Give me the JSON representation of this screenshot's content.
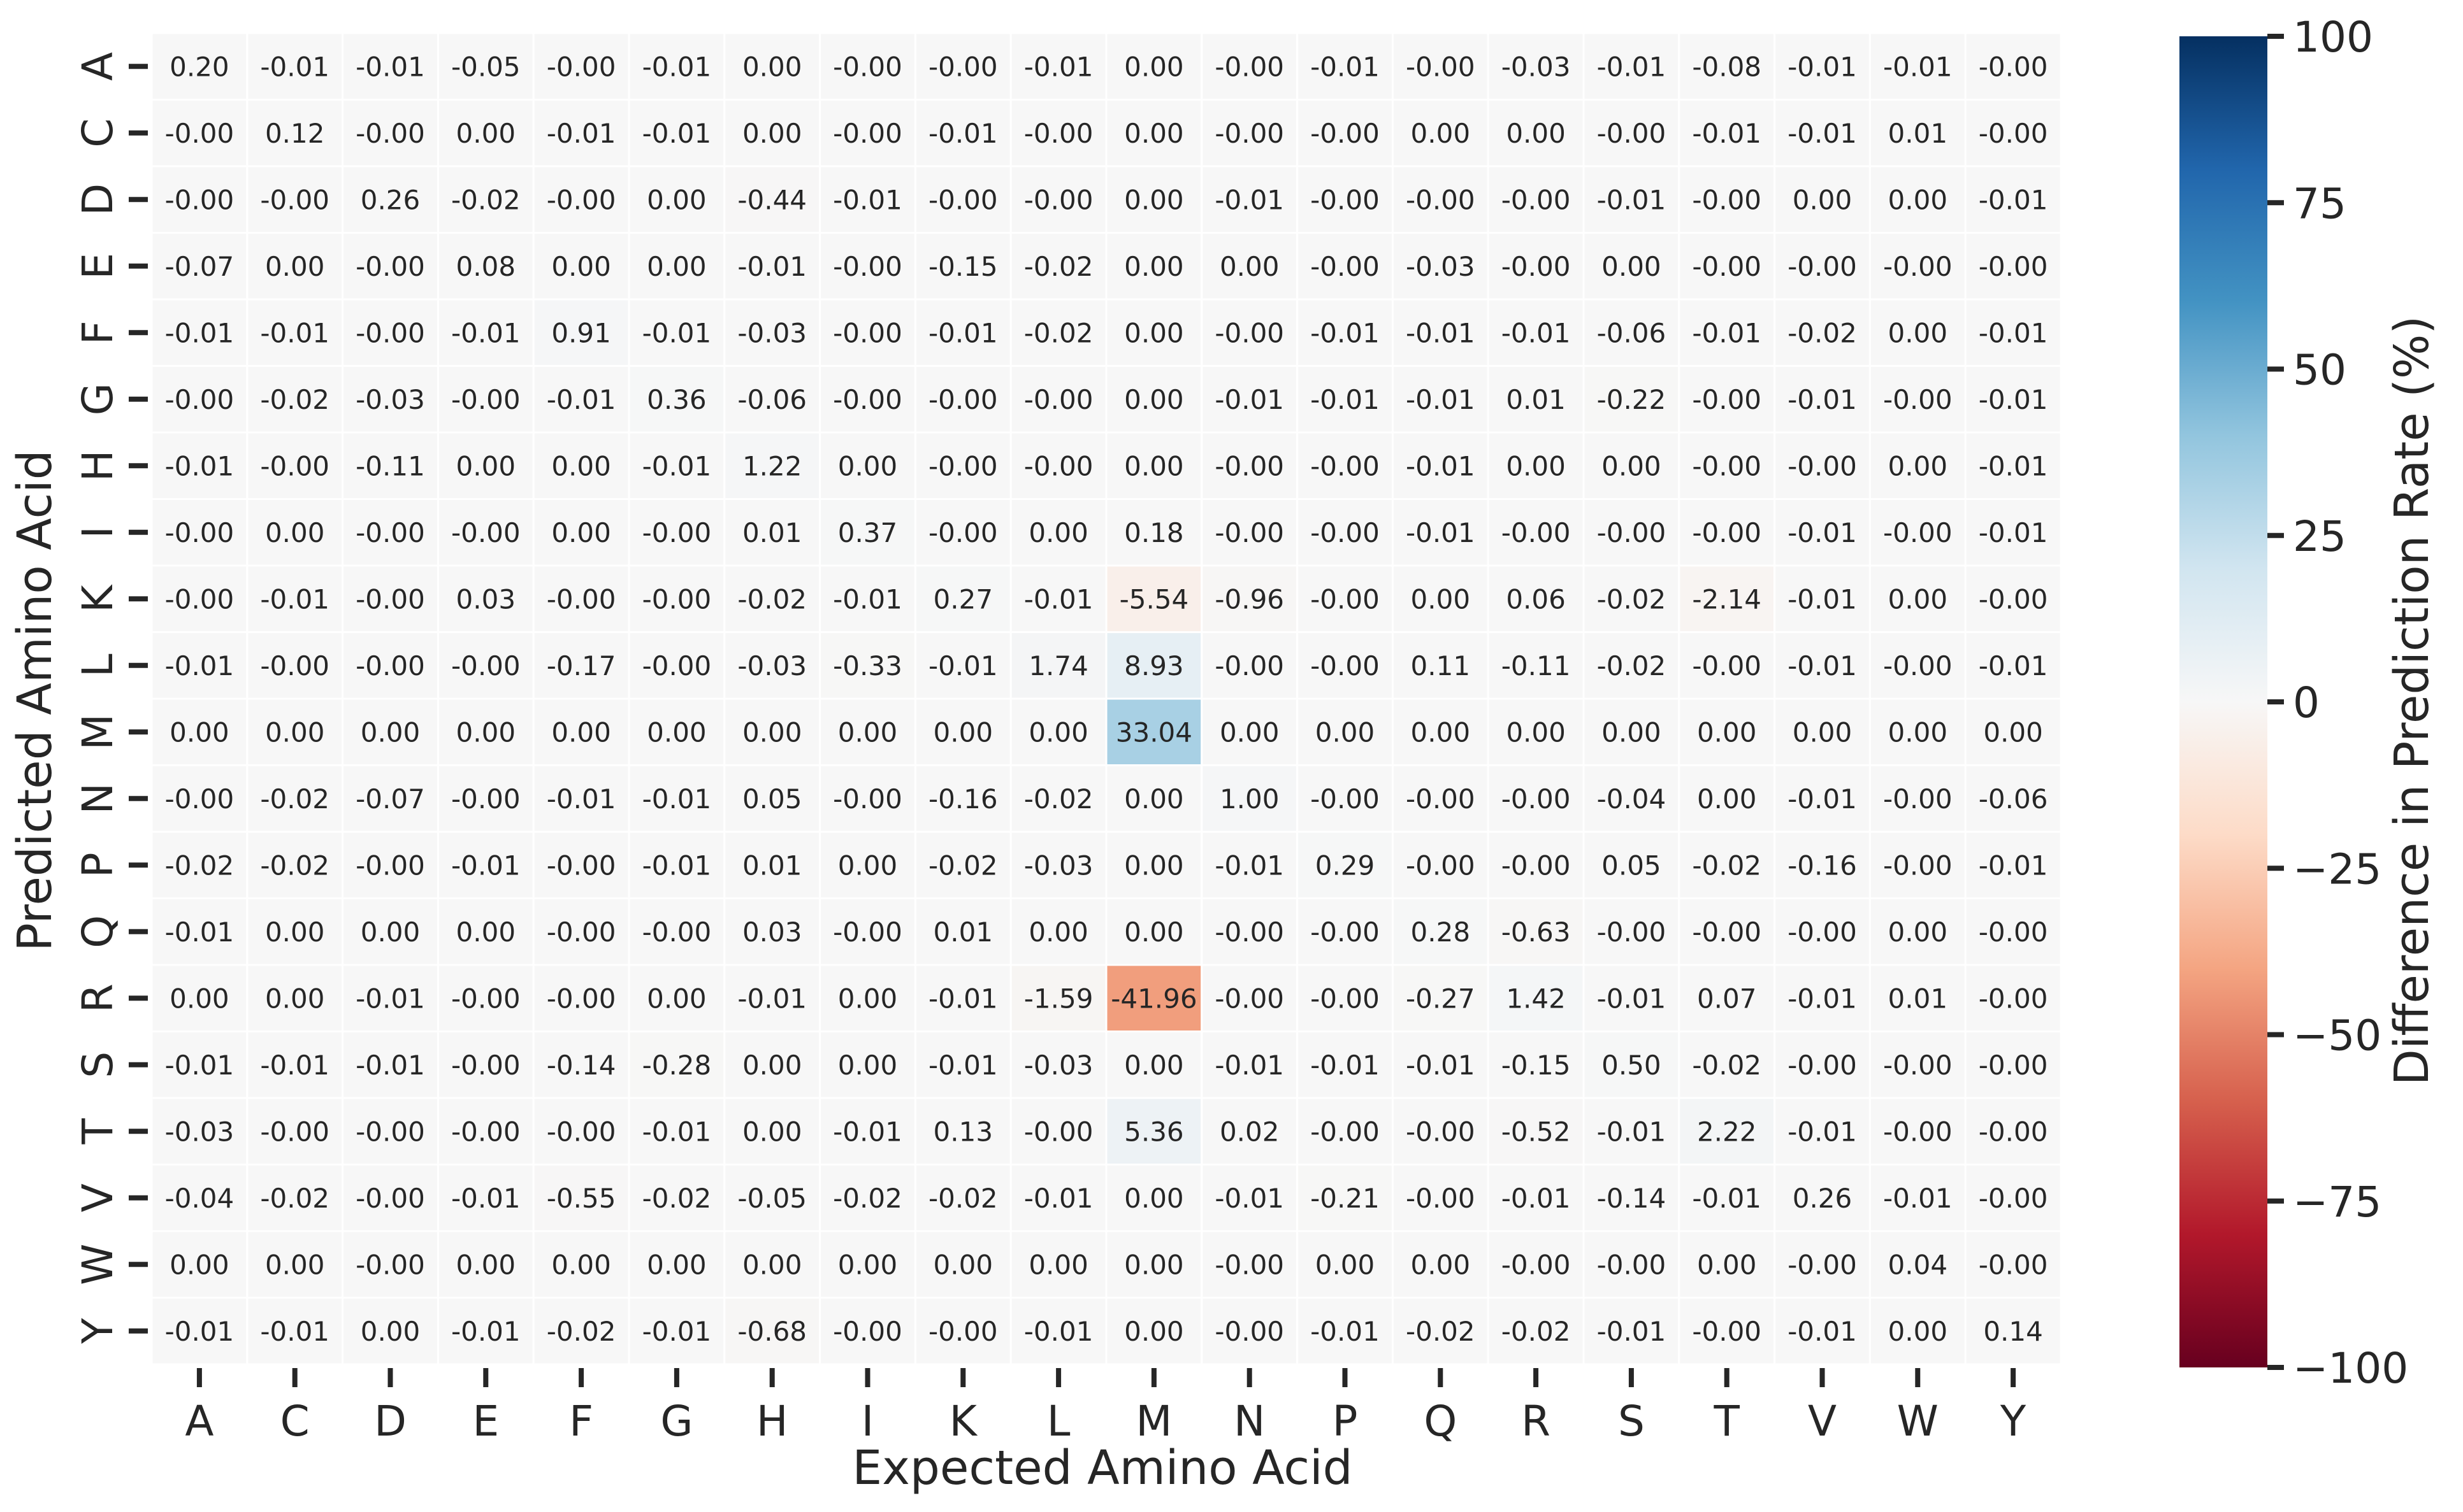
{
  "chart_data": {
    "type": "heatmap",
    "title": "",
    "xlabel": "Expected Amino Acid",
    "ylabel": "Predicted Amino Acid",
    "x_categories": [
      "A",
      "C",
      "D",
      "E",
      "F",
      "G",
      "H",
      "I",
      "K",
      "L",
      "M",
      "N",
      "P",
      "Q",
      "R",
      "S",
      "T",
      "V",
      "W",
      "Y"
    ],
    "y_categories": [
      "A",
      "C",
      "D",
      "E",
      "F",
      "G",
      "H",
      "I",
      "K",
      "L",
      "M",
      "N",
      "P",
      "Q",
      "R",
      "S",
      "T",
      "V",
      "W",
      "Y"
    ],
    "values": [
      [
        "0.20",
        "-0.01",
        "-0.01",
        "-0.05",
        "-0.00",
        "-0.01",
        "0.00",
        "-0.00",
        "-0.00",
        "-0.01",
        "0.00",
        "-0.00",
        "-0.01",
        "-0.00",
        "-0.03",
        "-0.01",
        "-0.08",
        "-0.01",
        "-0.01",
        "-0.00"
      ],
      [
        "-0.00",
        "0.12",
        "-0.00",
        "0.00",
        "-0.01",
        "-0.01",
        "0.00",
        "-0.00",
        "-0.01",
        "-0.00",
        "0.00",
        "-0.00",
        "-0.00",
        "0.00",
        "0.00",
        "-0.00",
        "-0.01",
        "-0.01",
        "0.01",
        "-0.00"
      ],
      [
        "-0.00",
        "-0.00",
        "0.26",
        "-0.02",
        "-0.00",
        "0.00",
        "-0.44",
        "-0.01",
        "-0.00",
        "-0.00",
        "0.00",
        "-0.01",
        "-0.00",
        "-0.00",
        "-0.00",
        "-0.01",
        "-0.00",
        "0.00",
        "0.00",
        "-0.01"
      ],
      [
        "-0.07",
        "0.00",
        "-0.00",
        "0.08",
        "0.00",
        "0.00",
        "-0.01",
        "-0.00",
        "-0.15",
        "-0.02",
        "0.00",
        "0.00",
        "-0.00",
        "-0.03",
        "-0.00",
        "0.00",
        "-0.00",
        "-0.00",
        "-0.00",
        "-0.00"
      ],
      [
        "-0.01",
        "-0.01",
        "-0.00",
        "-0.01",
        "0.91",
        "-0.01",
        "-0.03",
        "-0.00",
        "-0.01",
        "-0.02",
        "0.00",
        "-0.00",
        "-0.01",
        "-0.01",
        "-0.01",
        "-0.06",
        "-0.01",
        "-0.02",
        "0.00",
        "-0.01"
      ],
      [
        "-0.00",
        "-0.02",
        "-0.03",
        "-0.00",
        "-0.01",
        "0.36",
        "-0.06",
        "-0.00",
        "-0.00",
        "-0.00",
        "0.00",
        "-0.01",
        "-0.01",
        "-0.01",
        "0.01",
        "-0.22",
        "-0.00",
        "-0.01",
        "-0.00",
        "-0.01"
      ],
      [
        "-0.01",
        "-0.00",
        "-0.11",
        "0.00",
        "0.00",
        "-0.01",
        "1.22",
        "0.00",
        "-0.00",
        "-0.00",
        "0.00",
        "-0.00",
        "-0.00",
        "-0.01",
        "0.00",
        "0.00",
        "-0.00",
        "-0.00",
        "0.00",
        "-0.01"
      ],
      [
        "-0.00",
        "0.00",
        "-0.00",
        "-0.00",
        "0.00",
        "-0.00",
        "0.01",
        "0.37",
        "-0.00",
        "0.00",
        "0.18",
        "-0.00",
        "-0.00",
        "-0.01",
        "-0.00",
        "-0.00",
        "-0.00",
        "-0.01",
        "-0.00",
        "-0.01"
      ],
      [
        "-0.00",
        "-0.01",
        "-0.00",
        "0.03",
        "-0.00",
        "-0.00",
        "-0.02",
        "-0.01",
        "0.27",
        "-0.01",
        "-5.54",
        "-0.96",
        "-0.00",
        "0.00",
        "0.06",
        "-0.02",
        "-2.14",
        "-0.01",
        "0.00",
        "-0.00"
      ],
      [
        "-0.01",
        "-0.00",
        "-0.00",
        "-0.00",
        "-0.17",
        "-0.00",
        "-0.03",
        "-0.33",
        "-0.01",
        "1.74",
        "8.93",
        "-0.00",
        "-0.00",
        "0.11",
        "-0.11",
        "-0.02",
        "-0.00",
        "-0.01",
        "-0.00",
        "-0.01"
      ],
      [
        "0.00",
        "0.00",
        "0.00",
        "0.00",
        "0.00",
        "0.00",
        "0.00",
        "0.00",
        "0.00",
        "0.00",
        "33.04",
        "0.00",
        "0.00",
        "0.00",
        "0.00",
        "0.00",
        "0.00",
        "0.00",
        "0.00",
        "0.00"
      ],
      [
        "-0.00",
        "-0.02",
        "-0.07",
        "-0.00",
        "-0.01",
        "-0.01",
        "0.05",
        "-0.00",
        "-0.16",
        "-0.02",
        "0.00",
        "1.00",
        "-0.00",
        "-0.00",
        "-0.00",
        "-0.04",
        "0.00",
        "-0.01",
        "-0.00",
        "-0.06"
      ],
      [
        "-0.02",
        "-0.02",
        "-0.00",
        "-0.01",
        "-0.00",
        "-0.01",
        "0.01",
        "0.00",
        "-0.02",
        "-0.03",
        "0.00",
        "-0.01",
        "0.29",
        "-0.00",
        "-0.00",
        "0.05",
        "-0.02",
        "-0.16",
        "-0.00",
        "-0.01"
      ],
      [
        "-0.01",
        "0.00",
        "0.00",
        "0.00",
        "-0.00",
        "-0.00",
        "0.03",
        "-0.00",
        "0.01",
        "0.00",
        "0.00",
        "-0.00",
        "-0.00",
        "0.28",
        "-0.63",
        "-0.00",
        "-0.00",
        "-0.00",
        "0.00",
        "-0.00"
      ],
      [
        "0.00",
        "0.00",
        "-0.01",
        "-0.00",
        "-0.00",
        "0.00",
        "-0.01",
        "0.00",
        "-0.01",
        "-1.59",
        "-41.96",
        "-0.00",
        "-0.00",
        "-0.27",
        "1.42",
        "-0.01",
        "0.07",
        "-0.01",
        "0.01",
        "-0.00"
      ],
      [
        "-0.01",
        "-0.01",
        "-0.01",
        "-0.00",
        "-0.14",
        "-0.28",
        "0.00",
        "0.00",
        "-0.01",
        "-0.03",
        "0.00",
        "-0.01",
        "-0.01",
        "-0.01",
        "-0.15",
        "0.50",
        "-0.02",
        "-0.00",
        "-0.00",
        "-0.00"
      ],
      [
        "-0.03",
        "-0.00",
        "-0.00",
        "-0.00",
        "-0.00",
        "-0.01",
        "0.00",
        "-0.01",
        "0.13",
        "-0.00",
        "5.36",
        "0.02",
        "-0.00",
        "-0.00",
        "-0.52",
        "-0.01",
        "2.22",
        "-0.01",
        "-0.00",
        "-0.00"
      ],
      [
        "-0.04",
        "-0.02",
        "-0.00",
        "-0.01",
        "-0.55",
        "-0.02",
        "-0.05",
        "-0.02",
        "-0.02",
        "-0.01",
        "0.00",
        "-0.01",
        "-0.21",
        "-0.00",
        "-0.01",
        "-0.14",
        "-0.01",
        "0.26",
        "-0.01",
        "-0.00"
      ],
      [
        "0.00",
        "0.00",
        "-0.00",
        "0.00",
        "0.00",
        "0.00",
        "0.00",
        "0.00",
        "0.00",
        "0.00",
        "0.00",
        "-0.00",
        "0.00",
        "0.00",
        "-0.00",
        "-0.00",
        "0.00",
        "-0.00",
        "0.04",
        "-0.00"
      ],
      [
        "-0.01",
        "-0.01",
        "0.00",
        "-0.01",
        "-0.02",
        "-0.01",
        "-0.68",
        "-0.00",
        "-0.00",
        "-0.01",
        "0.00",
        "-0.00",
        "-0.01",
        "-0.02",
        "-0.02",
        "-0.01",
        "-0.00",
        "-0.01",
        "0.00",
        "0.14"
      ]
    ],
    "colorbar": {
      "label": "Difference in Prediction Rate (%)",
      "range": [
        -100,
        100
      ],
      "ticks": [
        100,
        75,
        50,
        25,
        0,
        -25,
        -50,
        -75,
        -100
      ],
      "tick_labels": [
        "100",
        "75",
        "50",
        "25",
        "0",
        "−25",
        "−50",
        "−75",
        "−100"
      ],
      "colormap": "RdBu",
      "colormap_stops": [
        "#67001f",
        "#b2182b",
        "#d6604d",
        "#f4a582",
        "#fddbc7",
        "#f7f7f7",
        "#d1e5f0",
        "#92c5de",
        "#4393c3",
        "#2166ac",
        "#053061"
      ]
    },
    "grid": false
  }
}
